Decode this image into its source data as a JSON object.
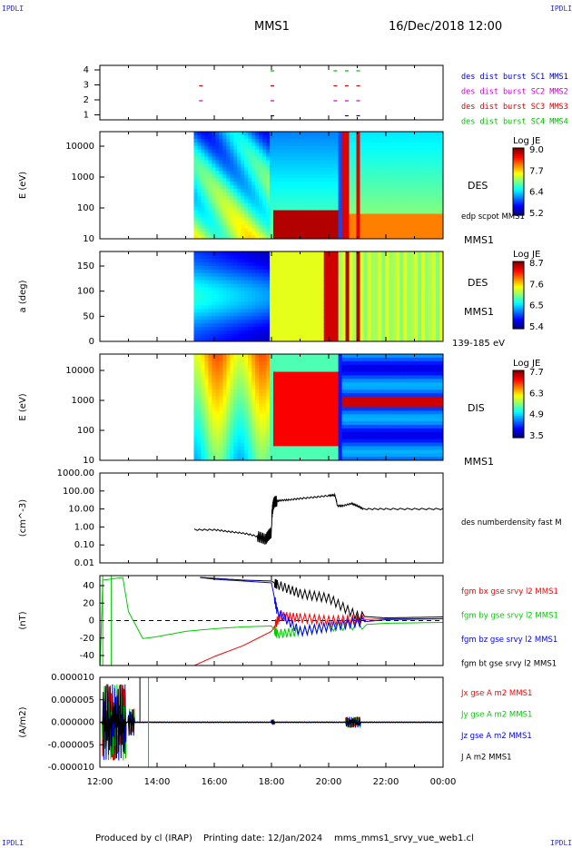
{
  "header": {
    "corner_tag": "IPDLI",
    "spacecraft": "MMS1",
    "datetime": "16/Dec/2018 12:00"
  },
  "footer": {
    "produced_by": "Produced by cl (IRAP)",
    "printing_date": "Printing date: 12/Jan/2024",
    "filename": "mms_mms1_srvy_vue_web1.cl"
  },
  "colors": {
    "c1": "#0000cc",
    "c2": "#cc00cc",
    "c3": "#dd0000",
    "c4": "#00bb00",
    "bx": "#ff0000",
    "by": "#00cc00",
    "bz": "#0000ff",
    "bt": "#000000"
  },
  "chart_data": [
    {
      "panel": "burst",
      "type": "scatter",
      "yticks": [
        "4",
        "3",
        "2",
        "1"
      ],
      "legend": [
        "des dist burst SC1 MMS1",
        "des dist burst SC2 MMS2",
        "des dist burst SC3 MMS3",
        "des dist burst SC4 MMS4"
      ],
      "series": [
        {
          "name": "des dist burst SC1 MMS1",
          "level": 1,
          "t": [
            18.0,
            20.6,
            21.0
          ]
        },
        {
          "name": "des dist burst SC2 MMS2",
          "level": 2,
          "t": [
            15.5,
            18.0,
            20.2,
            20.6,
            21.0
          ]
        },
        {
          "name": "des dist burst SC3 MMS3",
          "level": 3,
          "t": [
            15.5,
            18.0,
            20.2,
            20.6,
            21.0
          ]
        },
        {
          "name": "des dist burst SC4 MMS4",
          "level": 4,
          "t": [
            18.0,
            20.2,
            20.6,
            21.0
          ]
        }
      ]
    },
    {
      "panel": "des-energy",
      "type": "heatmap",
      "ylabel": "E (eV)",
      "scale": "log",
      "ylim": [
        10,
        30000
      ],
      "yticks": [
        "10000",
        "1000",
        "100",
        "10"
      ],
      "side_label": "DES",
      "sc_label": "MMS1",
      "overlay_label": "edp scpot MMS1",
      "colorbar": {
        "title": "Log JE",
        "ticks": [
          "9.0",
          "7.7",
          "6.4",
          "5.2"
        ],
        "range": [
          5.2,
          9.0
        ]
      }
    },
    {
      "panel": "des-pitch",
      "type": "heatmap",
      "ylabel": "a (deg)",
      "ylim": [
        0,
        180
      ],
      "yticks": [
        "150",
        "100",
        "50",
        "0"
      ],
      "side_label": "DES",
      "sc_label": "MMS1",
      "range_label": "139-185 eV",
      "colorbar": {
        "title": "Log JE",
        "ticks": [
          "8.7",
          "7.6",
          "6.5",
          "5.4"
        ],
        "range": [
          5.4,
          8.7
        ]
      }
    },
    {
      "panel": "dis-energy",
      "type": "heatmap",
      "ylabel": "E (eV)",
      "scale": "log",
      "ylim": [
        10,
        25000
      ],
      "yticks": [
        "10000",
        "1000",
        "100",
        "10"
      ],
      "side_label": "DIS",
      "sc_label": "MMS1",
      "colorbar": {
        "title": "Log JE",
        "ticks": [
          "7.7",
          "6.3",
          "4.9",
          "3.5"
        ],
        "range": [
          3.5,
          7.7
        ]
      }
    },
    {
      "panel": "density",
      "type": "line",
      "ylabel": "(cm^-3)",
      "scale": "log",
      "ylim": [
        0.01,
        1000
      ],
      "yticks": [
        "1000.00",
        "100.00",
        "10.00",
        "1.00",
        "0.10",
        "0.01"
      ],
      "legend": [
        "des numberdensity fast M"
      ],
      "x": [
        15.3,
        16.0,
        16.5,
        17.0,
        17.5,
        17.8,
        18.0,
        18.1,
        18.3,
        18.6,
        19.0,
        19.5,
        20.0,
        20.2,
        20.3,
        20.5,
        20.8,
        21.0,
        21.2,
        22.0,
        23.0,
        24.0
      ],
      "y": [
        0.7,
        0.7,
        0.55,
        0.45,
        0.3,
        0.2,
        0.5,
        25,
        30,
        32,
        38,
        45,
        55,
        60,
        15,
        15,
        20,
        15,
        10,
        10,
        10,
        10
      ]
    },
    {
      "panel": "fgm",
      "type": "line",
      "ylabel": "(nT)",
      "ylim": [
        -50,
        50
      ],
      "yticks": [
        "40",
        "20",
        "0",
        "-20",
        "-40"
      ],
      "series": [
        {
          "name": "fgm bx gse srvy l2 MMS1",
          "x": [
            15.3,
            16.0,
            17.0,
            17.5,
            18.0,
            18.3,
            19.0,
            20.0,
            21.0,
            22.0,
            24.0
          ],
          "y": [
            -50,
            -40,
            -28,
            -20,
            -12,
            5,
            3,
            0,
            1,
            2,
            2
          ]
        },
        {
          "name": "fgm by gse srvy l2 MMS1",
          "x": [
            12.0,
            12.1,
            12.8,
            13.0,
            13.5,
            14.0,
            15.0,
            16.0,
            17.0,
            18.0,
            18.2,
            19.0,
            20.0,
            22.0,
            24.0
          ],
          "y": [
            -60,
            45,
            48,
            10,
            -20,
            -18,
            -12,
            -9,
            -7,
            -6,
            -15,
            -12,
            -7,
            -3,
            -2
          ]
        },
        {
          "name": "fgm bz gse srvy l2 MMS1",
          "x": [
            15.5,
            16.0,
            17.0,
            18.0,
            18.2,
            19.0,
            20.0,
            21.0,
            22.0,
            24.0
          ],
          "y": [
            48,
            46,
            44,
            42,
            10,
            -12,
            -7,
            -2,
            1,
            2
          ]
        },
        {
          "name": "fgm bt gse srvy l2 MMS1",
          "x": [
            15.5,
            16.0,
            17.0,
            18.0,
            18.2,
            19.0,
            20.0,
            21.0,
            22.0,
            24.0
          ],
          "y": [
            48,
            47,
            45,
            44,
            40,
            30,
            25,
            5,
            3,
            4
          ]
        }
      ]
    },
    {
      "panel": "current",
      "type": "line",
      "ylabel": "(A/m2)",
      "ylim": [
        -0.0001,
        0.0001
      ],
      "yticks": [
        "0.000010",
        "0.000005",
        "0.000000",
        "-0.000005",
        "-0.000010"
      ],
      "legend": [
        "Jx gse A m2 MMS1",
        "Jy gse A m2 MMS1",
        "Jz gse A m2 MMS1",
        "J A m2 MMS1"
      ],
      "xticks": [
        "12:00",
        "14:00",
        "16:00",
        "18:00",
        "20:00",
        "22:00",
        "00:00"
      ],
      "xlim": [
        12,
        24
      ]
    }
  ]
}
